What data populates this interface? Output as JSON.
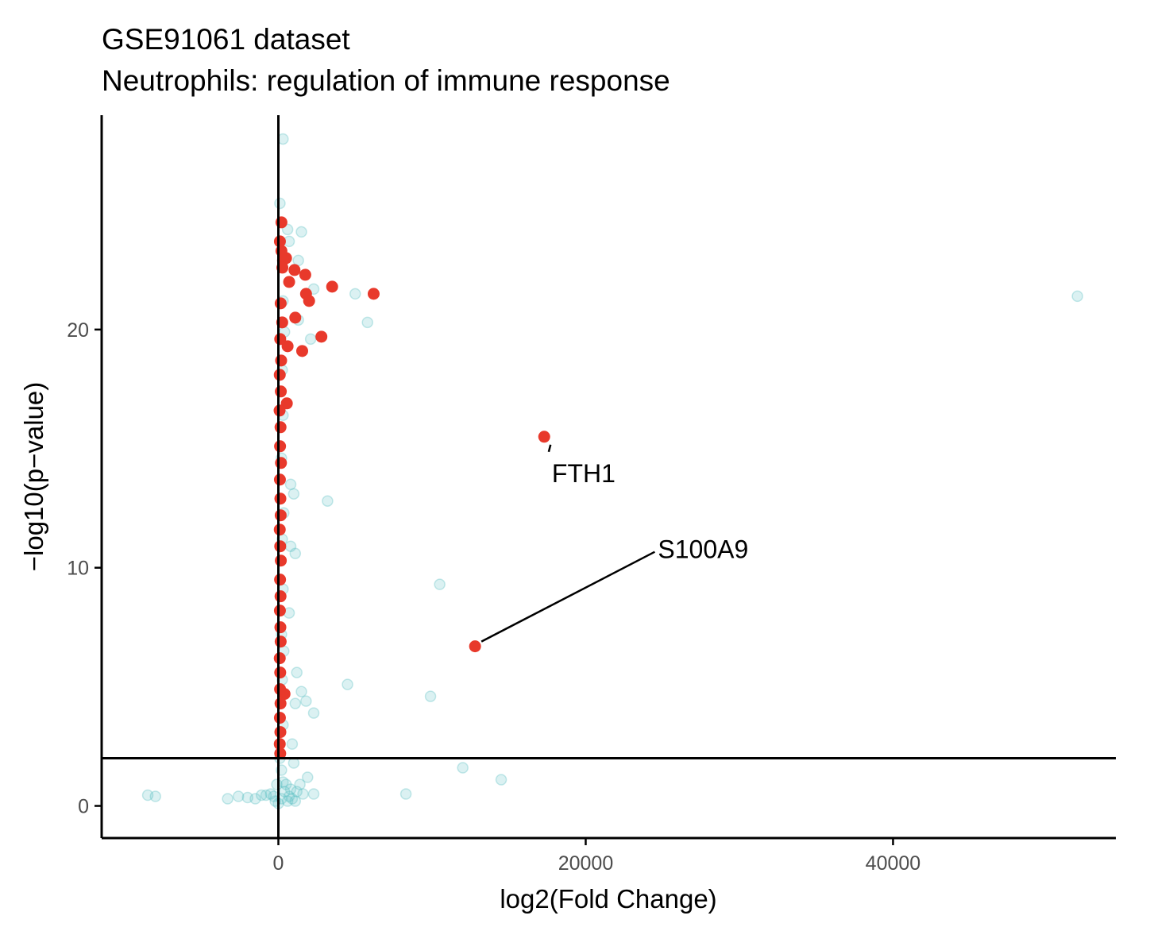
{
  "chart_data": {
    "type": "scatter",
    "title": "GSE91061 dataset",
    "subtitle": "Neutrophils: regulation of immune response",
    "xlabel": "log2(Fold Change)",
    "ylabel": "−log10(p−value)",
    "xlim": [
      -11500,
      54500
    ],
    "ylim": [
      -1.35,
      29.0
    ],
    "x_ticks": [
      0,
      20000,
      40000
    ],
    "x_tick_labels": [
      "0",
      "20000",
      "40000"
    ],
    "y_ticks": [
      0,
      10,
      20
    ],
    "y_tick_labels": [
      "0",
      "10",
      "20"
    ],
    "grid": false,
    "legend": "none",
    "reference_lines": {
      "vertical_x": 0,
      "horizontal_y": 2.0
    },
    "colors": {
      "significant": "#e8392b",
      "not_significant": "#5bc0c4",
      "axis": "#000000"
    },
    "series": [
      {
        "status": "significant",
        "points": [
          [
            12800,
            6.7
          ],
          [
            17300,
            15.5
          ],
          [
            1050,
            22.5
          ],
          [
            1750,
            22.3
          ],
          [
            3500,
            21.8
          ],
          [
            6200,
            21.5
          ],
          [
            1800,
            21.5
          ],
          [
            2000,
            21.2
          ],
          [
            1100,
            20.5
          ],
          [
            2800,
            19.7
          ],
          [
            1550,
            19.1
          ],
          [
            500,
            23.0
          ],
          [
            700,
            22.0
          ],
          [
            600,
            19.3
          ],
          [
            550,
            16.9
          ],
          [
            400,
            4.7
          ],
          [
            200,
            24.5
          ],
          [
            100,
            23.7
          ],
          [
            300,
            22.9
          ],
          [
            150,
            21.1
          ],
          [
            250,
            20.3
          ],
          [
            120,
            19.6
          ],
          [
            180,
            18.7
          ],
          [
            90,
            18.1
          ],
          [
            160,
            17.4
          ],
          [
            80,
            16.6
          ],
          [
            140,
            15.9
          ],
          [
            110,
            15.1
          ],
          [
            170,
            14.4
          ],
          [
            100,
            13.7
          ],
          [
            130,
            12.9
          ],
          [
            150,
            12.2
          ],
          [
            90,
            11.6
          ],
          [
            120,
            10.9
          ],
          [
            160,
            10.3
          ],
          [
            110,
            9.5
          ],
          [
            140,
            8.8
          ],
          [
            100,
            8.2
          ],
          [
            130,
            7.5
          ],
          [
            150,
            6.9
          ],
          [
            90,
            6.2
          ],
          [
            120,
            5.6
          ],
          [
            110,
            4.9
          ],
          [
            140,
            4.3
          ],
          [
            100,
            3.7
          ],
          [
            130,
            3.1
          ],
          [
            90,
            2.6
          ],
          [
            120,
            2.2
          ],
          [
            200,
            23.3
          ],
          [
            260,
            22.6
          ]
        ]
      },
      {
        "status": "not_significant",
        "points": [
          [
            52000,
            21.4
          ],
          [
            5800,
            20.3
          ],
          [
            5000,
            21.5
          ],
          [
            3200,
            12.8
          ],
          [
            10500,
            9.3
          ],
          [
            4500,
            5.1
          ],
          [
            9900,
            4.6
          ],
          [
            12000,
            1.6
          ],
          [
            14500,
            1.1
          ],
          [
            8300,
            0.5
          ],
          [
            1500,
            24.1
          ],
          [
            1300,
            22.9
          ],
          [
            2300,
            21.7
          ],
          [
            2100,
            19.6
          ],
          [
            1300,
            20.4
          ],
          [
            800,
            13.5
          ],
          [
            1000,
            13.1
          ],
          [
            1100,
            10.6
          ],
          [
            800,
            10.9
          ],
          [
            700,
            8.1
          ],
          [
            1200,
            5.6
          ],
          [
            1500,
            4.8
          ],
          [
            1800,
            4.4
          ],
          [
            2300,
            3.9
          ],
          [
            1100,
            4.3
          ],
          [
            900,
            2.6
          ],
          [
            1900,
            1.2
          ],
          [
            1000,
            1.8
          ],
          [
            300,
            28.0
          ],
          [
            100,
            25.3
          ],
          [
            600,
            24.2
          ],
          [
            700,
            23.7
          ],
          [
            -8500,
            0.45
          ],
          [
            -8000,
            0.4
          ],
          [
            -3300,
            0.3
          ],
          [
            -2600,
            0.4
          ],
          [
            -2000,
            0.35
          ],
          [
            -1500,
            0.3
          ],
          [
            -1100,
            0.45
          ],
          [
            -800,
            0.45
          ],
          [
            -500,
            0.5
          ],
          [
            -300,
            0.4
          ],
          [
            -200,
            0.2
          ],
          [
            0,
            0.1
          ],
          [
            200,
            0.3
          ],
          [
            400,
            0.6
          ],
          [
            600,
            0.2
          ],
          [
            800,
            0.7
          ],
          [
            1200,
            0.6
          ],
          [
            1600,
            0.5
          ],
          [
            2300,
            0.5
          ],
          [
            300,
            1.0
          ],
          [
            500,
            0.9
          ],
          [
            200,
            1.5
          ],
          [
            100,
            2.0
          ],
          [
            -100,
            0.9
          ],
          [
            700,
            0.4
          ],
          [
            900,
            0.3
          ],
          [
            1100,
            0.2
          ],
          [
            1400,
            0.9
          ],
          [
            300,
            21.2
          ],
          [
            400,
            19.9
          ],
          [
            250,
            18.3
          ],
          [
            300,
            16.4
          ],
          [
            200,
            14.6
          ],
          [
            350,
            12.3
          ],
          [
            250,
            11.2
          ],
          [
            300,
            9.1
          ],
          [
            200,
            7.2
          ],
          [
            350,
            6.5
          ],
          [
            250,
            5.3
          ],
          [
            300,
            3.4
          ]
        ]
      }
    ],
    "annotations": [
      {
        "label": "FTH1",
        "x": 17300,
        "y": 15.5,
        "label_x": 17800,
        "label_y": 14.0
      },
      {
        "label": "S100A9",
        "x": 12800,
        "y": 6.7,
        "label_x": 24700,
        "label_y": 10.8
      }
    ]
  }
}
